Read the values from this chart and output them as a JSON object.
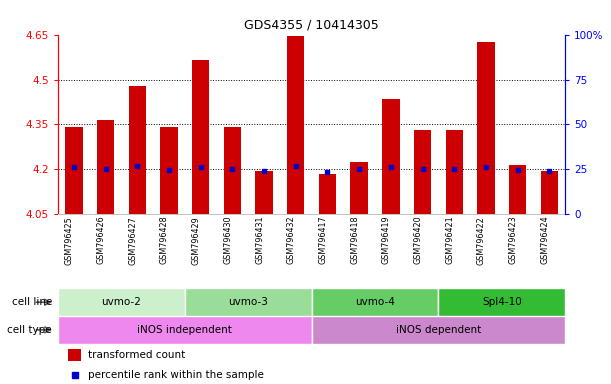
{
  "title": "GDS4355 / 10414305",
  "samples": [
    "GSM796425",
    "GSM796426",
    "GSM796427",
    "GSM796428",
    "GSM796429",
    "GSM796430",
    "GSM796431",
    "GSM796432",
    "GSM796417",
    "GSM796418",
    "GSM796419",
    "GSM796420",
    "GSM796421",
    "GSM796422",
    "GSM796423",
    "GSM796424"
  ],
  "bar_values": [
    4.34,
    4.365,
    4.48,
    4.34,
    4.565,
    4.34,
    4.192,
    4.645,
    4.183,
    4.222,
    4.435,
    4.33,
    4.33,
    4.625,
    4.212,
    4.192
  ],
  "blue_values": [
    4.205,
    4.2,
    4.21,
    4.197,
    4.205,
    4.2,
    4.193,
    4.21,
    4.191,
    4.2,
    4.205,
    4.198,
    4.2,
    4.205,
    4.197,
    4.194
  ],
  "ymin": 4.05,
  "ymax": 4.65,
  "yticks": [
    4.05,
    4.2,
    4.35,
    4.5,
    4.65
  ],
  "ytick_labels": [
    "4.05",
    "4.2",
    "4.35",
    "4.5",
    "4.65"
  ],
  "right_yticks_pct": [
    0,
    25,
    50,
    75,
    100
  ],
  "right_ytick_labels": [
    "0",
    "25",
    "50",
    "75",
    "100%"
  ],
  "grid_lines": [
    4.2,
    4.35,
    4.5
  ],
  "bar_color": "#cc0000",
  "blue_color": "#0000cc",
  "bar_width": 0.55,
  "cell_line_groups": [
    {
      "label": "uvmo-2",
      "start": 0,
      "end": 3,
      "color": "#ccf0cc"
    },
    {
      "label": "uvmo-3",
      "start": 4,
      "end": 7,
      "color": "#99dd99"
    },
    {
      "label": "uvmo-4",
      "start": 8,
      "end": 11,
      "color": "#66cc66"
    },
    {
      "label": "Spl4-10",
      "start": 12,
      "end": 15,
      "color": "#33bb33"
    }
  ],
  "cell_type_groups": [
    {
      "label": "iNOS independent",
      "start": 0,
      "end": 7,
      "color": "#ee88ee"
    },
    {
      "label": "iNOS dependent",
      "start": 8,
      "end": 15,
      "color": "#cc88cc"
    }
  ],
  "legend_items": [
    {
      "color": "#cc0000",
      "label": "transformed count"
    },
    {
      "color": "#0000cc",
      "label": "percentile rank within the sample"
    }
  ],
  "bg_color": "#ffffff",
  "xtick_bg": "#d8d8d8",
  "title_fontsize": 9,
  "axis_fontsize": 7.5,
  "label_fontsize": 7.5,
  "cell_fontsize": 7.5
}
